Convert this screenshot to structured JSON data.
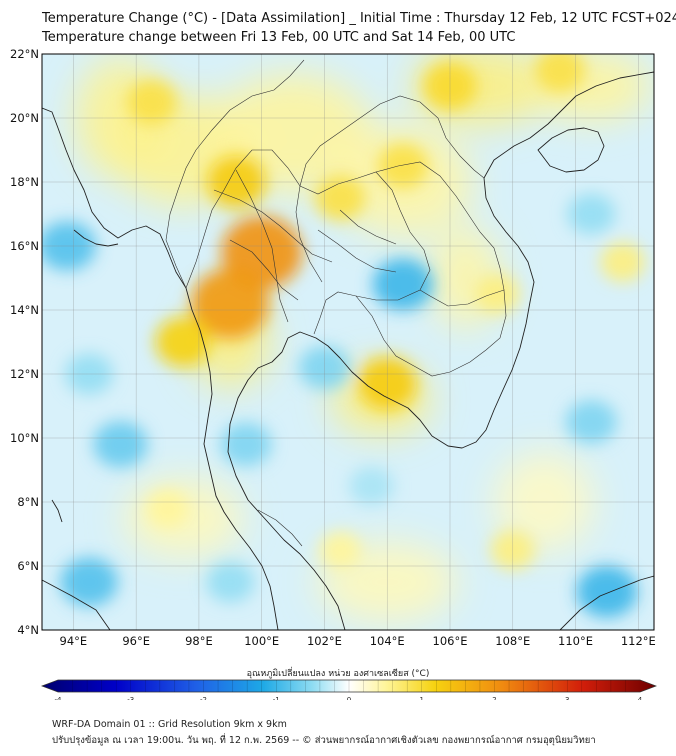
{
  "header": {
    "title_line1": "Temperature Change (°C) - [Data Assimilation] _ Initial Time : Thursday 12 Feb, 12 UTC FCST+024",
    "title_line2": "Temperature change between Fri 13 Feb, 00 UTC and Sat 14 Feb, 00 UTC"
  },
  "map": {
    "lat_ticks": [
      "22°N",
      "20°N",
      "18°N",
      "16°N",
      "14°N",
      "12°N",
      "10°N",
      "8°N",
      "6°N",
      "4°N"
    ],
    "lon_ticks": [
      "94°E",
      "96°E",
      "98°E",
      "100°E",
      "102°E",
      "104°E",
      "106°E",
      "108°E",
      "110°E",
      "112°E"
    ],
    "lat_range": [
      4,
      22
    ],
    "lon_range": [
      93,
      112.5
    ],
    "hot_spots": [
      {
        "lon": 100.0,
        "lat": 15.8,
        "level": 1.9
      },
      {
        "lon": 99.0,
        "lat": 14.2,
        "level": 1.8
      },
      {
        "lon": 99.2,
        "lat": 18.0,
        "level": 1.1
      },
      {
        "lon": 97.5,
        "lat": 13.0,
        "level": 1.0
      },
      {
        "lon": 104.0,
        "lat": 11.7,
        "level": 1.1
      },
      {
        "lon": 102.5,
        "lat": 17.5,
        "level": 0.8
      },
      {
        "lon": 104.5,
        "lat": 18.5,
        "level": 0.8
      },
      {
        "lon": 106.0,
        "lat": 21.0,
        "level": 0.9
      },
      {
        "lon": 109.5,
        "lat": 21.5,
        "level": 0.8
      },
      {
        "lon": 96.5,
        "lat": 20.5,
        "level": 0.8
      },
      {
        "lon": 107.5,
        "lat": 14.5,
        "level": 0.6
      },
      {
        "lon": 97.0,
        "lat": 7.8,
        "level": 0.5
      },
      {
        "lon": 108.0,
        "lat": 6.5,
        "level": 0.6
      },
      {
        "lon": 102.5,
        "lat": 6.5,
        "level": 0.5
      },
      {
        "lon": 111.5,
        "lat": 15.5,
        "level": 0.6
      }
    ],
    "cool_spots": [
      {
        "lon": 104.5,
        "lat": 14.8,
        "level": -0.9
      },
      {
        "lon": 93.8,
        "lat": 16.0,
        "level": -0.8
      },
      {
        "lon": 95.5,
        "lat": 9.8,
        "level": -0.7
      },
      {
        "lon": 94.5,
        "lat": 5.5,
        "level": -0.8
      },
      {
        "lon": 111.0,
        "lat": 5.2,
        "level": -0.9
      },
      {
        "lon": 110.5,
        "lat": 10.5,
        "level": -0.6
      },
      {
        "lon": 99.5,
        "lat": 9.8,
        "level": -0.6
      },
      {
        "lon": 102.0,
        "lat": 12.2,
        "level": -0.6
      },
      {
        "lon": 110.5,
        "lat": 17.0,
        "level": -0.5
      },
      {
        "lon": 103.5,
        "lat": 8.5,
        "level": -0.4
      },
      {
        "lon": 99.0,
        "lat": 5.5,
        "level": -0.5
      },
      {
        "lon": 94.5,
        "lat": 12.0,
        "level": -0.5
      }
    ]
  },
  "colorbar": {
    "label": "อุณหภูมิเปลี่ยนแปลง หน่วย องศาเซลเซียส (°C)",
    "ticks": [
      "-4",
      "-3",
      "-2",
      "-1",
      "0",
      "1",
      "2",
      "3",
      "4"
    ],
    "range": [
      -4,
      4
    ]
  },
  "footer": {
    "line1": "WRF-DA Domain 01 :: Grid Resolution 9km x 9km",
    "line2": "ปรับปรุงข้อมูล ณ เวลา 19:00น. วัน พฤ. ที่ 12 ก.พ. 2569 -- © ส่วนพยากรณ์อากาศเชิงตัวเลข กองพยากรณ์อากาศ กรมอุตุนิยมวิทยา"
  }
}
